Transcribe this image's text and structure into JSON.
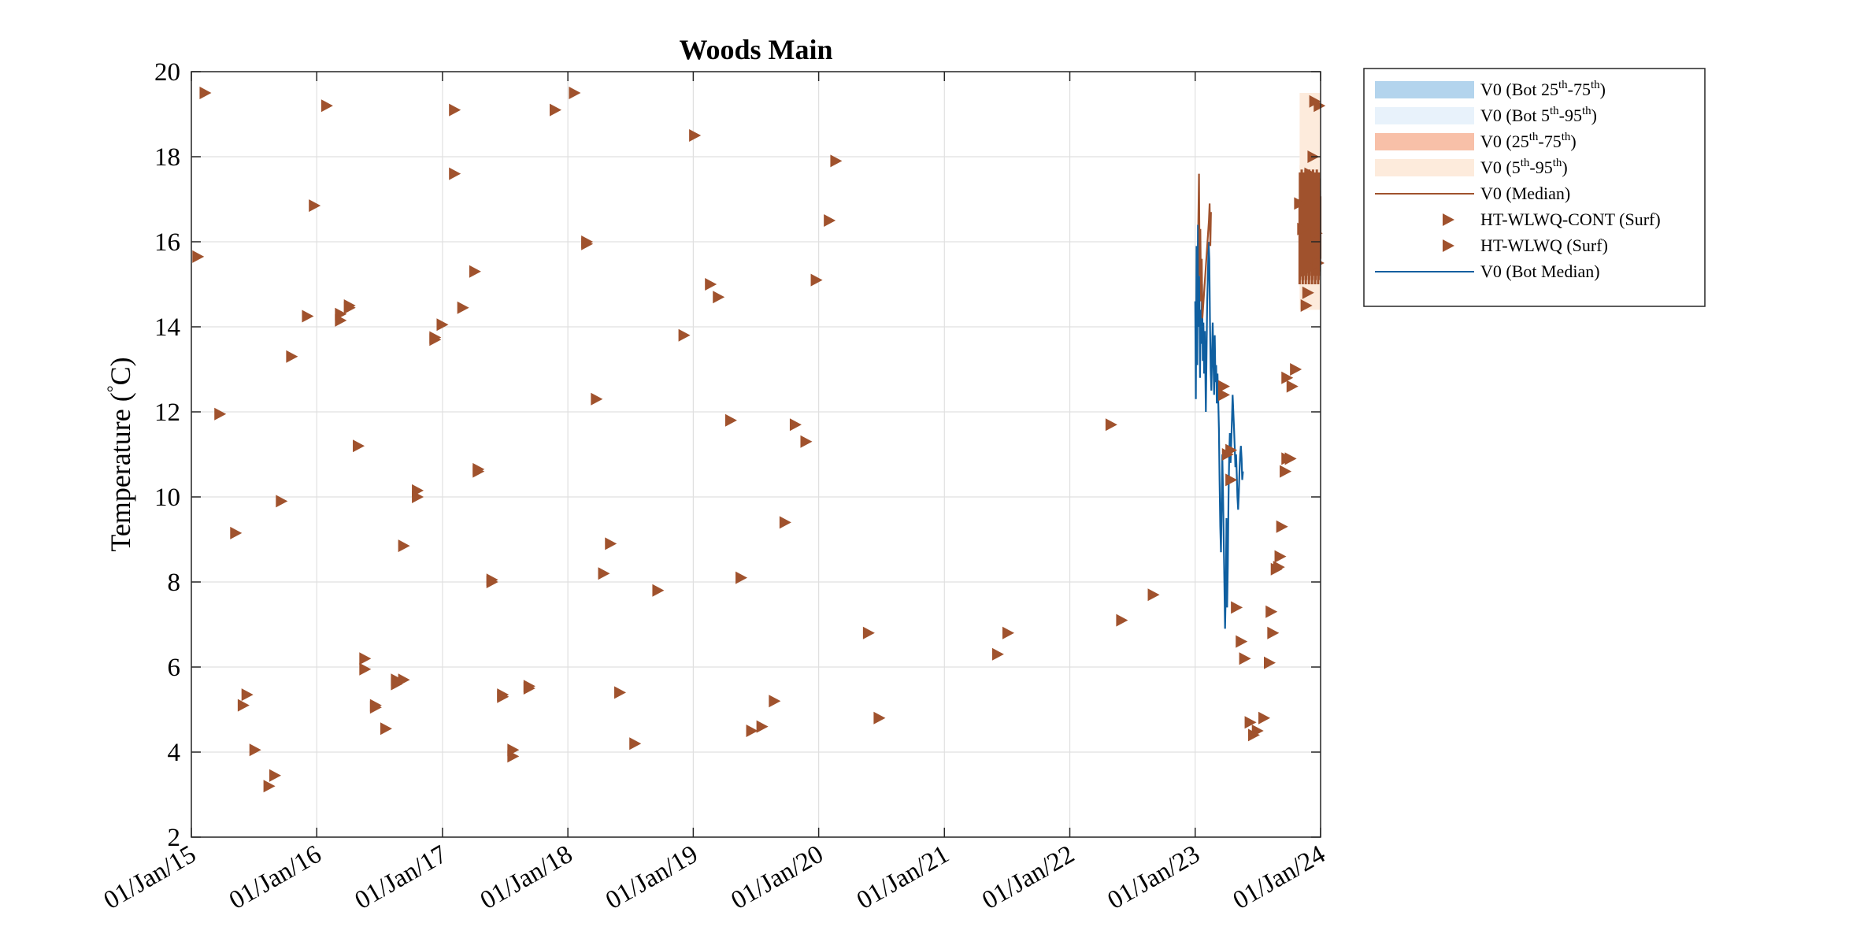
{
  "chart_data": {
    "type": "scatter",
    "title": "Woods Main",
    "ylabel": "Temperature (°C)",
    "ylabel_parts": {
      "text": "Temperature (",
      "degree": "°",
      "unit": "C)"
    },
    "xlabel": "",
    "ylim": [
      2,
      20
    ],
    "yticks": [
      2,
      4,
      6,
      8,
      10,
      12,
      14,
      16,
      18,
      20
    ],
    "xlim": [
      "2015-01-01",
      "2024-01-01"
    ],
    "xticks": [
      "2015-01-01",
      "2016-01-01",
      "2017-01-01",
      "2018-01-01",
      "2019-01-01",
      "2020-01-01",
      "2021-01-01",
      "2022-01-01",
      "2023-01-01",
      "2024-01-01"
    ],
    "xtick_labels": [
      "01/Jan/15",
      "01/Jan/16",
      "01/Jan/17",
      "01/Jan/18",
      "01/Jan/19",
      "01/Jan/20",
      "01/Jan/21",
      "01/Jan/22",
      "01/Jan/23",
      "01/Jan/24"
    ],
    "grid": true,
    "legend_position": "outside-right-top",
    "colors": {
      "marker": "#a0522d",
      "bot_median": "#0f5fa0",
      "bot_25_75": "#b3d4ed",
      "bot_5_95": "#e8f2fb",
      "surf_25_75": "#f8c0a8",
      "surf_5_95": "#fdebdc",
      "surf_median": "#a0522d"
    },
    "legend": [
      {
        "key": "bot_25_75",
        "kind": "patch",
        "label": "V0 (Bot 25",
        "sup1": "th",
        "mid": "-75",
        "sup2": "th",
        "end": ")"
      },
      {
        "key": "bot_5_95",
        "kind": "patch",
        "label": "V0 (Bot 5",
        "sup1": "th",
        "mid": "-95",
        "sup2": "th",
        "end": ")"
      },
      {
        "key": "surf_25_75",
        "kind": "patch",
        "label": "V0 (25",
        "sup1": "th",
        "mid": "-75",
        "sup2": "th",
        "end": ")"
      },
      {
        "key": "surf_5_95",
        "kind": "patch",
        "label": "V0 (5",
        "sup1": "th",
        "mid": "-95",
        "sup2": "th",
        "end": ")"
      },
      {
        "key": "surf_median",
        "kind": "line",
        "label": "V0 (Median)"
      },
      {
        "key": "marker",
        "kind": "marker",
        "label": "HT-WLWQ-CONT (Surf)"
      },
      {
        "key": "marker",
        "kind": "marker",
        "label": "HT-WLWQ (Surf)"
      },
      {
        "key": "bot_median",
        "kind": "line",
        "label": "V0 (Bot Median)"
      }
    ],
    "series": [
      {
        "name": "HT-WLWQ (Surf)",
        "kind": "scatter",
        "points": [
          [
            "2015-01-20",
            15.65
          ],
          [
            "2015-02-10",
            19.5
          ],
          [
            "2015-03-25",
            11.95
          ],
          [
            "2015-05-10",
            9.15
          ],
          [
            "2015-06-01",
            5.1
          ],
          [
            "2015-06-12",
            5.35
          ],
          [
            "2015-07-05",
            4.05
          ],
          [
            "2015-08-15",
            3.2
          ],
          [
            "2015-09-01",
            3.45
          ],
          [
            "2015-09-20",
            9.9
          ],
          [
            "2015-10-20",
            13.3
          ],
          [
            "2015-12-05",
            14.25
          ],
          [
            "2015-12-25",
            16.85
          ],
          [
            "2016-01-30",
            19.2
          ],
          [
            "2016-03-10",
            14.3
          ],
          [
            "2016-03-10",
            14.15
          ],
          [
            "2016-04-05",
            14.45
          ],
          [
            "2016-04-05",
            14.5
          ],
          [
            "2016-05-01",
            11.2
          ],
          [
            "2016-05-20",
            6.2
          ],
          [
            "2016-05-20",
            5.95
          ],
          [
            "2016-06-20",
            5.1
          ],
          [
            "2016-06-20",
            5.05
          ],
          [
            "2016-07-20",
            4.55
          ],
          [
            "2016-08-20",
            5.7
          ],
          [
            "2016-08-20",
            5.6
          ],
          [
            "2016-09-10",
            5.7
          ],
          [
            "2016-09-10",
            8.85
          ],
          [
            "2016-10-20",
            10.15
          ],
          [
            "2016-10-20",
            10.0
          ],
          [
            "2016-12-10",
            13.75
          ],
          [
            "2016-12-10",
            13.7
          ],
          [
            "2016-12-31",
            14.05
          ],
          [
            "2017-02-05",
            19.1
          ],
          [
            "2017-02-05",
            17.6
          ],
          [
            "2017-03-01",
            14.45
          ],
          [
            "2017-04-05",
            15.3
          ],
          [
            "2017-04-15",
            10.65
          ],
          [
            "2017-04-15",
            10.6
          ],
          [
            "2017-05-25",
            8.05
          ],
          [
            "2017-05-25",
            8.0
          ],
          [
            "2017-06-25",
            5.35
          ],
          [
            "2017-06-25",
            5.3
          ],
          [
            "2017-07-25",
            4.05
          ],
          [
            "2017-07-25",
            3.9
          ],
          [
            "2017-09-10",
            5.55
          ],
          [
            "2017-09-10",
            5.5
          ],
          [
            "2017-11-25",
            19.1
          ],
          [
            "2018-01-20",
            19.5
          ],
          [
            "2018-02-25",
            16.0
          ],
          [
            "2018-02-25",
            15.95
          ],
          [
            "2018-03-25",
            12.3
          ],
          [
            "2018-04-15",
            8.2
          ],
          [
            "2018-05-05",
            8.9
          ],
          [
            "2018-06-01",
            5.4
          ],
          [
            "2018-07-15",
            4.2
          ],
          [
            "2018-09-20",
            7.8
          ],
          [
            "2018-12-05",
            13.8
          ],
          [
            "2019-01-05",
            18.5
          ],
          [
            "2019-02-20",
            15.0
          ],
          [
            "2019-03-15",
            14.7
          ],
          [
            "2019-04-20",
            11.8
          ],
          [
            "2019-05-20",
            8.1
          ],
          [
            "2019-06-20",
            4.5
          ],
          [
            "2019-07-20",
            4.6
          ],
          [
            "2019-08-25",
            5.2
          ],
          [
            "2019-09-25",
            9.4
          ],
          [
            "2019-10-25",
            11.7
          ],
          [
            "2019-11-25",
            11.3
          ],
          [
            "2019-12-25",
            15.1
          ],
          [
            "2020-02-01",
            16.5
          ],
          [
            "2020-02-20",
            17.9
          ],
          [
            "2020-05-25",
            6.8
          ],
          [
            "2020-06-25",
            4.8
          ],
          [
            "2021-06-05",
            6.3
          ],
          [
            "2021-07-05",
            6.8
          ],
          [
            "2022-05-01",
            11.7
          ],
          [
            "2022-06-01",
            7.1
          ],
          [
            "2022-09-01",
            7.7
          ]
        ]
      },
      {
        "name": "HT-WLWQ-CONT (Surf)",
        "kind": "scatter",
        "points": [
          [
            "2023-03-25",
            12.6
          ],
          [
            "2023-03-25",
            12.4
          ],
          [
            "2023-04-05",
            11.0
          ],
          [
            "2023-04-15",
            11.1
          ],
          [
            "2023-04-15",
            10.4
          ],
          [
            "2023-05-01",
            7.4
          ],
          [
            "2023-05-15",
            6.6
          ],
          [
            "2023-05-25",
            6.2
          ],
          [
            "2023-06-10",
            4.7
          ],
          [
            "2023-06-20",
            4.4
          ],
          [
            "2023-07-01",
            4.5
          ],
          [
            "2023-07-20",
            4.8
          ],
          [
            "2023-08-05",
            6.1
          ],
          [
            "2023-08-10",
            7.3
          ],
          [
            "2023-08-15",
            6.8
          ],
          [
            "2023-08-25",
            8.3
          ],
          [
            "2023-09-01",
            8.35
          ],
          [
            "2023-09-05",
            8.6
          ],
          [
            "2023-09-10",
            9.3
          ],
          [
            "2023-09-20",
            10.6
          ],
          [
            "2023-09-25",
            10.9
          ],
          [
            "2023-10-05",
            10.9
          ],
          [
            "2023-09-25",
            12.8
          ],
          [
            "2023-10-10",
            12.6
          ],
          [
            "2023-10-20",
            13.0
          ],
          [
            "2023-11-01",
            16.9
          ],
          [
            "2023-11-10",
            16.3
          ],
          [
            "2023-11-15",
            15.3
          ],
          [
            "2023-11-20",
            14.5
          ],
          [
            "2023-11-25",
            14.8
          ],
          [
            "2023-12-01",
            17.6
          ],
          [
            "2023-12-05",
            15.4
          ],
          [
            "2023-12-10",
            18.0
          ],
          [
            "2023-12-15",
            19.3
          ],
          [
            "2023-12-20",
            16.2
          ],
          [
            "2023-12-25",
            15.5
          ],
          [
            "2023-12-28",
            19.2
          ]
        ]
      },
      {
        "name": "V0 (Bot Median)",
        "kind": "line",
        "points": [
          [
            "2023-01-01",
            14.6
          ],
          [
            "2023-01-03",
            12.3
          ],
          [
            "2023-01-05",
            15.9
          ],
          [
            "2023-01-07",
            13.1
          ],
          [
            "2023-01-09",
            16.4
          ],
          [
            "2023-01-11",
            14.0
          ],
          [
            "2023-01-13",
            15.2
          ],
          [
            "2023-01-15",
            12.8
          ],
          [
            "2023-01-17",
            14.4
          ],
          [
            "2023-01-19",
            13.6
          ],
          [
            "2023-01-21",
            15.0
          ],
          [
            "2023-01-23",
            13.2
          ],
          [
            "2023-01-25",
            14.1
          ],
          [
            "2023-01-27",
            12.9
          ],
          [
            "2023-01-29",
            13.9
          ],
          [
            "2023-02-01",
            12.0
          ],
          [
            "2023-02-03",
            13.4
          ],
          [
            "2023-02-05",
            14.6
          ],
          [
            "2023-02-07",
            15.2
          ],
          [
            "2023-02-09",
            16.0
          ],
          [
            "2023-02-11",
            15.6
          ],
          [
            "2023-02-13",
            14.2
          ],
          [
            "2023-02-15",
            13.0
          ],
          [
            "2023-02-17",
            12.5
          ],
          [
            "2023-02-19",
            13.3
          ],
          [
            "2023-02-21",
            14.1
          ],
          [
            "2023-02-23",
            13.2
          ],
          [
            "2023-02-25",
            12.4
          ],
          [
            "2023-02-27",
            13.8
          ],
          [
            "2023-03-01",
            12.7
          ],
          [
            "2023-03-03",
            13.1
          ],
          [
            "2023-03-05",
            12.2
          ],
          [
            "2023-03-07",
            12.9
          ],
          [
            "2023-03-09",
            12.3
          ],
          [
            "2023-03-11",
            11.6
          ],
          [
            "2023-03-13",
            10.4
          ],
          [
            "2023-03-15",
            9.3
          ],
          [
            "2023-03-17",
            8.7
          ],
          [
            "2023-03-19",
            9.9
          ],
          [
            "2023-03-21",
            11.0
          ],
          [
            "2023-03-23",
            10.1
          ],
          [
            "2023-03-25",
            9.0
          ],
          [
            "2023-03-27",
            8.0
          ],
          [
            "2023-03-29",
            6.9
          ],
          [
            "2023-03-31",
            7.8
          ],
          [
            "2023-04-02",
            9.5
          ],
          [
            "2023-04-04",
            7.4
          ],
          [
            "2023-04-06",
            8.4
          ],
          [
            "2023-04-08",
            10.0
          ],
          [
            "2023-04-10",
            11.0
          ],
          [
            "2023-04-12",
            11.5
          ],
          [
            "2023-04-14",
            10.8
          ],
          [
            "2023-04-16",
            11.3
          ],
          [
            "2023-04-18",
            11.8
          ],
          [
            "2023-04-20",
            12.4
          ],
          [
            "2023-04-22",
            12.0
          ],
          [
            "2023-04-24",
            11.6
          ],
          [
            "2023-04-26",
            11.2
          ],
          [
            "2023-04-28",
            10.7
          ],
          [
            "2023-04-30",
            11.0
          ],
          [
            "2023-05-02",
            10.5
          ],
          [
            "2023-05-04",
            10.0
          ],
          [
            "2023-05-06",
            9.7
          ],
          [
            "2023-05-08",
            10.1
          ],
          [
            "2023-05-10",
            10.6
          ],
          [
            "2023-05-12",
            11.0
          ],
          [
            "2023-05-14",
            11.2
          ],
          [
            "2023-05-16",
            10.9
          ],
          [
            "2023-05-18",
            10.4
          ],
          [
            "2023-05-20",
            10.6
          ]
        ]
      },
      {
        "name": "V0 (Median)",
        "kind": "line",
        "points": [
          [
            "2023-01-10",
            16.4
          ],
          [
            "2023-01-12",
            17.6
          ],
          [
            "2023-01-14",
            15.2
          ],
          [
            "2023-01-16",
            16.3
          ],
          [
            "2023-01-18",
            14.6
          ],
          [
            "2023-01-20",
            15.6
          ],
          [
            "2023-01-22",
            14.2
          ],
          [
            "2023-02-10",
            16.5
          ],
          [
            "2023-02-12",
            16.9
          ],
          [
            "2023-02-14",
            15.9
          ],
          [
            "2023-02-16",
            16.7
          ]
        ]
      },
      {
        "name": "V0 (25th-75th)",
        "kind": "band",
        "x": [
          "2023-11-01",
          "2023-12-31"
        ],
        "y": [
          15.0,
          17.8
        ]
      },
      {
        "name": "V0 (5th-95th)",
        "kind": "band",
        "x": [
          "2023-11-01",
          "2023-12-31"
        ],
        "y": [
          14.4,
          19.5
        ]
      }
    ]
  }
}
